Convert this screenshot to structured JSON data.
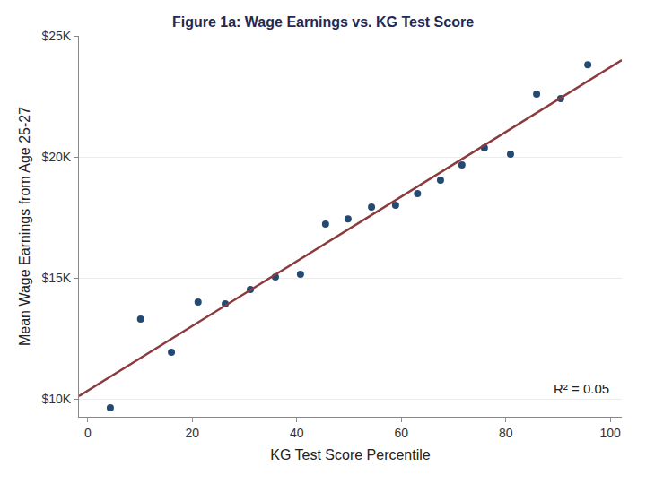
{
  "chart_data": {
    "type": "scatter",
    "title": "Figure 1a: Wage Earnings vs. KG Test Score",
    "x_label": "KG Test Score Percentile",
    "y_label": "Mean Wage Earnings from Age 25-27",
    "series": [
      {
        "type": "scatter",
        "marker": "circle",
        "color": "#234a72",
        "x": [
          4.3,
          10.1,
          16.0,
          21.1,
          26.3,
          31.1,
          35.9,
          40.7,
          45.5,
          49.8,
          54.3,
          58.9,
          63.1,
          67.5,
          71.6,
          75.9,
          80.9,
          85.9,
          90.5,
          95.7
        ],
        "values": [
          9630,
          13300,
          11930,
          14000,
          13930,
          14520,
          15040,
          15150,
          17220,
          17440,
          17930,
          18000,
          18480,
          19040,
          19670,
          20370,
          20110,
          22590,
          22410,
          23810
        ]
      },
      {
        "type": "line",
        "line_style": "solid",
        "color": "#8b3b3e",
        "x": [
          -1.7,
          102.2
        ],
        "values": [
          10110,
          24000
        ]
      }
    ],
    "xlim": [
      -1.7,
      102.2
    ],
    "xticks": [
      0,
      20,
      40,
      60,
      80,
      100
    ],
    "ylim": [
      9260,
      25000
    ],
    "yticks": [
      {
        "value": 10000,
        "label": "$10K"
      },
      {
        "value": 15000,
        "label": "$15K"
      },
      {
        "value": 20000,
        "label": "$20K"
      },
      {
        "value": 25000,
        "label": "$25K"
      }
    ],
    "grid": true,
    "annotations": [
      "R² = 0.05"
    ]
  }
}
